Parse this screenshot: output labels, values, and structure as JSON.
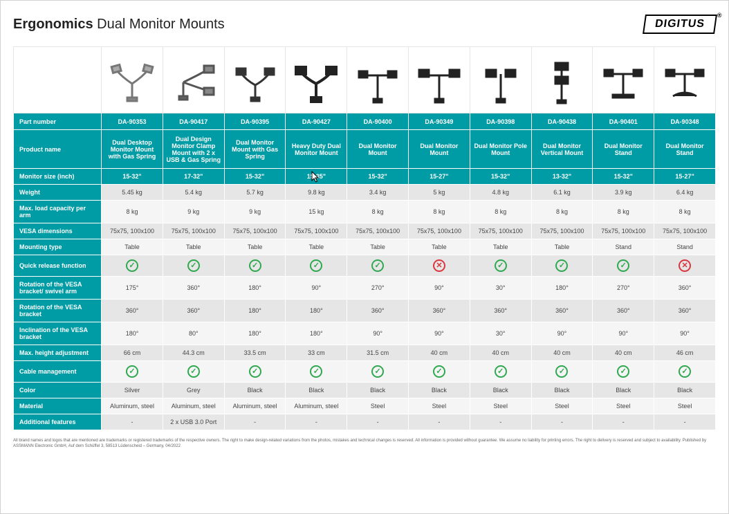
{
  "brand": "DIGITUS",
  "title_bold": "Ergonomics",
  "title_light": "Dual Monitor Mounts",
  "colors": {
    "teal": "#009ca6",
    "row_even": "#e6e6e6",
    "row_odd": "#f5f5f5",
    "check": "#2fa84f",
    "cross": "#d9363e",
    "text": "#444444",
    "border": "#ffffff"
  },
  "row_labels": {
    "part_number": "Part number",
    "product_name": "Product name",
    "monitor_size": "Monitor size (inch)",
    "weight": "Weight",
    "max_load": "Max. load capacity per arm",
    "vesa": "VESA dimensions",
    "mounting": "Mounting type",
    "quick_release": "Quick release function",
    "rotation_swivel": "Rotation of the VESA bracket/ swivel arm",
    "rotation_bracket": "Rotation of the VESA bracket",
    "inclination": "Inclination of the VESA bracket",
    "max_height": "Max. height adjustment",
    "cable": "Cable management",
    "color": "Color",
    "material": "Material",
    "additional": "Additional features"
  },
  "products": [
    {
      "pn": "DA-90353",
      "name": "Dual Desktop Monitor Mount with Gas Spring",
      "size": "15-32\"",
      "weight": "5.45 kg",
      "load": "8 kg",
      "vesa": "75x75, 100x100",
      "mount": "Table",
      "qr": "yes",
      "rot_sw": "175°",
      "rot_br": "360°",
      "incl": "180°",
      "maxh": "66 cm",
      "cable": "yes",
      "color": "Silver",
      "material": "Aluminum, steel",
      "add": "-"
    },
    {
      "pn": "DA-90417",
      "name": "Dual Design Monitor Clamp Mount with 2 x USB & Gas Spring",
      "size": "17-32\"",
      "weight": "5.4 kg",
      "load": "9 kg",
      "vesa": "75x75, 100x100",
      "mount": "Table",
      "qr": "yes",
      "rot_sw": "360°",
      "rot_br": "360°",
      "incl": "80°",
      "maxh": "44.3 cm",
      "cable": "yes",
      "color": "Grey",
      "material": "Aluminum, steel",
      "add": "2 x USB 3.0 Port"
    },
    {
      "pn": "DA-90395",
      "name": "Dual Monitor Mount with Gas Spring",
      "size": "15-32\"",
      "weight": "5.7 kg",
      "load": "9 kg",
      "vesa": "75x75, 100x100",
      "mount": "Table",
      "qr": "yes",
      "rot_sw": "180°",
      "rot_br": "180°",
      "incl": "180°",
      "maxh": "33.5 cm",
      "cable": "yes",
      "color": "Black",
      "material": "Aluminum, steel",
      "add": "-"
    },
    {
      "pn": "DA-90427",
      "name": "Heavy Duty Dual Monitor Mount",
      "size": "15-35\"",
      "weight": "9.8 kg",
      "load": "15 kg",
      "vesa": "75x75, 100x100",
      "mount": "Table",
      "qr": "yes",
      "rot_sw": "90°",
      "rot_br": "180°",
      "incl": "180°",
      "maxh": "33 cm",
      "cable": "yes",
      "color": "Black",
      "material": "Aluminum, steel",
      "add": "-"
    },
    {
      "pn": "DA-90400",
      "name": "Dual Monitor Mount",
      "size": "15-32\"",
      "weight": "3.4 kg",
      "load": "8 kg",
      "vesa": "75x75, 100x100",
      "mount": "Table",
      "qr": "yes",
      "rot_sw": "270°",
      "rot_br": "360°",
      "incl": "90°",
      "maxh": "31.5 cm",
      "cable": "yes",
      "color": "Black",
      "material": "Steel",
      "add": "-"
    },
    {
      "pn": "DA-90349",
      "name": "Dual Monitor Mount",
      "size": "15-27\"",
      "weight": "5 kg",
      "load": "8 kg",
      "vesa": "75x75, 100x100",
      "mount": "Table",
      "qr": "no",
      "rot_sw": "90°",
      "rot_br": "360°",
      "incl": "90°",
      "maxh": "40 cm",
      "cable": "yes",
      "color": "Black",
      "material": "Steel",
      "add": "-"
    },
    {
      "pn": "DA-90398",
      "name": "Dual Monitor Pole Mount",
      "size": "15-32\"",
      "weight": "4.8 kg",
      "load": "8 kg",
      "vesa": "75x75, 100x100",
      "mount": "Table",
      "qr": "yes",
      "rot_sw": "30°",
      "rot_br": "360°",
      "incl": "30°",
      "maxh": "40 cm",
      "cable": "yes",
      "color": "Black",
      "material": "Steel",
      "add": "-"
    },
    {
      "pn": "DA-90438",
      "name": "Dual Monitor Vertical Mount",
      "size": "13-32\"",
      "weight": "6.1 kg",
      "load": "8 kg",
      "vesa": "75x75, 100x100",
      "mount": "Table",
      "qr": "yes",
      "rot_sw": "180°",
      "rot_br": "360°",
      "incl": "90°",
      "maxh": "40 cm",
      "cable": "yes",
      "color": "Black",
      "material": "Steel",
      "add": "-"
    },
    {
      "pn": "DA-90401",
      "name": "Dual Monitor Stand",
      "size": "15-32\"",
      "weight": "3.9 kg",
      "load": "8 kg",
      "vesa": "75x75, 100x100",
      "mount": "Stand",
      "qr": "yes",
      "rot_sw": "270°",
      "rot_br": "360°",
      "incl": "90°",
      "maxh": "40 cm",
      "cable": "yes",
      "color": "Black",
      "material": "Steel",
      "add": "-"
    },
    {
      "pn": "DA-90348",
      "name": "Dual Monitor Stand",
      "size": "15-27\"",
      "weight": "6.4 kg",
      "load": "8 kg",
      "vesa": "75x75, 100x100",
      "mount": "Stand",
      "qr": "no",
      "rot_sw": "360°",
      "rot_br": "360°",
      "incl": "90°",
      "maxh": "46 cm",
      "cable": "yes",
      "color": "Black",
      "material": "Steel",
      "add": "-"
    }
  ],
  "footer": "All brand names and logos that are mentioned are trademarks or registered trademarks of the respective owners. The right to make design-related variations from the photos, mistakes and technical changes is reserved. All information is provided without guarantee. We assume no liability for printing errors. The right to delivery is reserved and subject to availability. Published by ASSMANN Electronic GmbH, Auf dem Schüffel 3, 58513 Lüdenscheid – Germany, 04/2022"
}
